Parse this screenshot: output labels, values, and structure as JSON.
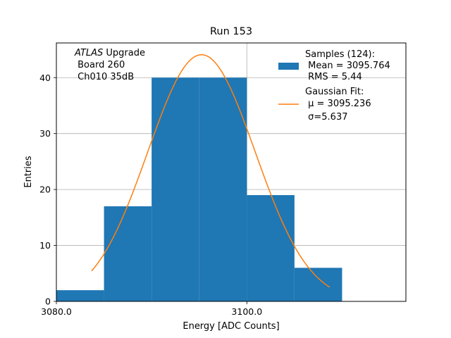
{
  "chart_data": {
    "type": "bar",
    "title": "Run 153",
    "xlabel": "Energy [ADC Counts]",
    "ylabel": "Entries",
    "xlim": [
      3080.0,
      3116.7
    ],
    "ylim": [
      0,
      46.2
    ],
    "grid": true,
    "x_ticks": [
      3080.0,
      3100.0
    ],
    "x_tick_labels": [
      "3080.0",
      "3100.0"
    ],
    "y_ticks": [
      0,
      10,
      20,
      30,
      40
    ],
    "y_tick_labels": [
      "0",
      "10",
      "20",
      "30",
      "40"
    ],
    "bin_edges": [
      3080.0,
      3085.0,
      3090.0,
      3095.0,
      3100.0,
      3105.0,
      3110.0
    ],
    "values": [
      2,
      17,
      40,
      40,
      19,
      6
    ],
    "histogram_color": "#1f77b4",
    "fit": {
      "type": "gaussian",
      "amplitude": 44.1,
      "mu": 3095.236,
      "sigma": 5.637,
      "x_range": [
        3083.7,
        3108.7
      ],
      "color": "#ff7f0e"
    },
    "annotation": {
      "italic": "ATLAS",
      "first_line_rest": " Upgrade",
      "lines": [
        " Board 260",
        " Ch010 35dB"
      ]
    },
    "legend": {
      "position": "top-right",
      "entries": [
        {
          "kind": "patch",
          "lines": [
            "Samples (124):",
            " Mean = 3095.764",
            " RMS = 5.44"
          ]
        },
        {
          "kind": "line",
          "lines": [
            "Gaussian Fit:",
            " μ = 3095.236",
            " σ=5.637"
          ]
        }
      ]
    }
  }
}
